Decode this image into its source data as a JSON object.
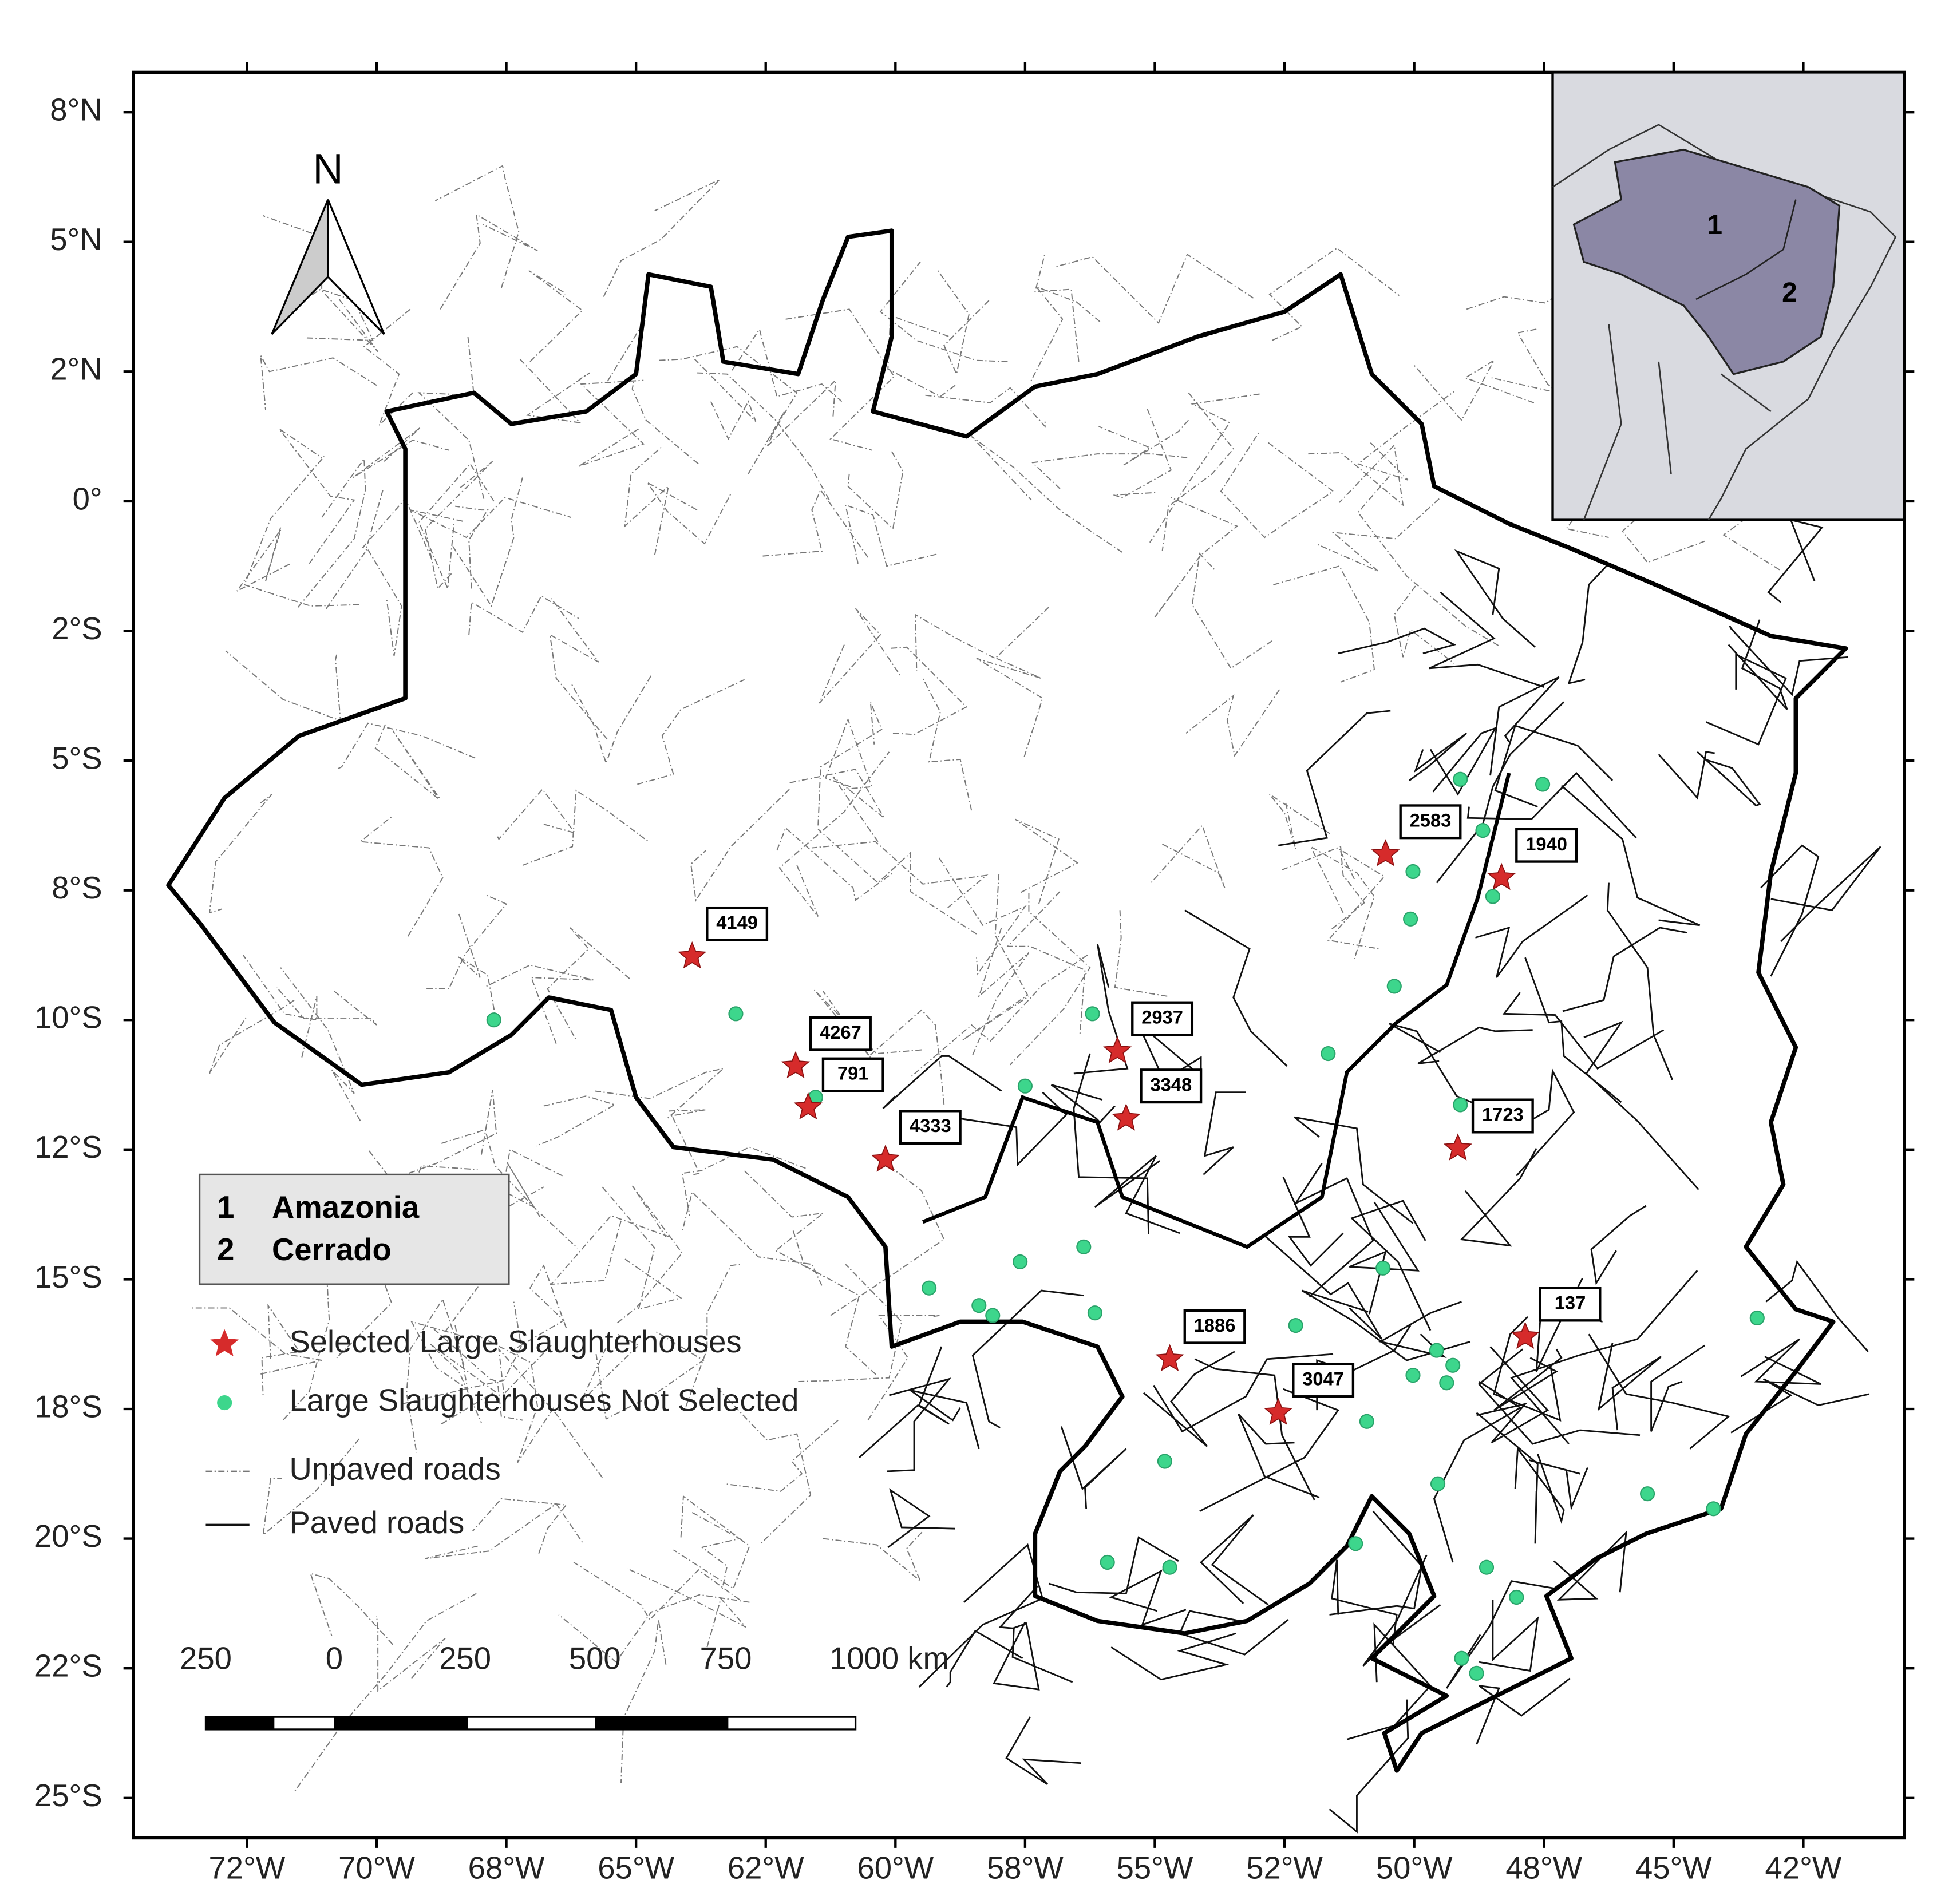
{
  "map": {
    "lat_ticks": [
      "8°N",
      "5°N",
      "2°N",
      "0°",
      "2°S",
      "5°S",
      "8°S",
      "10°S",
      "12°S",
      "15°S",
      "18°S",
      "20°S",
      "22°S",
      "25°S"
    ],
    "lon_ticks": [
      "72°W",
      "70°W",
      "68°W",
      "65°W",
      "62°W",
      "60°W",
      "58°W",
      "55°W",
      "52°W",
      "50°W",
      "48°W",
      "45°W",
      "42°W"
    ],
    "north": "N",
    "inset_labels": [
      "1",
      "2"
    ],
    "regions": [
      {
        "num": "1",
        "name": "Amazonia"
      },
      {
        "num": "2",
        "name": "Cerrado"
      }
    ],
    "legend": {
      "selected": "Selected Large Slaughterhouses",
      "not_selected": "Large Slaughterhouses Not Selected",
      "unpaved": "Unpaved roads",
      "paved": "Paved roads"
    },
    "scale": [
      "250",
      "0",
      "250",
      "500",
      "750",
      "1000 km"
    ],
    "selected_slaughterhouses": [
      "4149",
      "4267",
      "791",
      "4333",
      "2937",
      "3348",
      "2583",
      "1940",
      "1723",
      "137",
      "1886",
      "3047"
    ]
  }
}
